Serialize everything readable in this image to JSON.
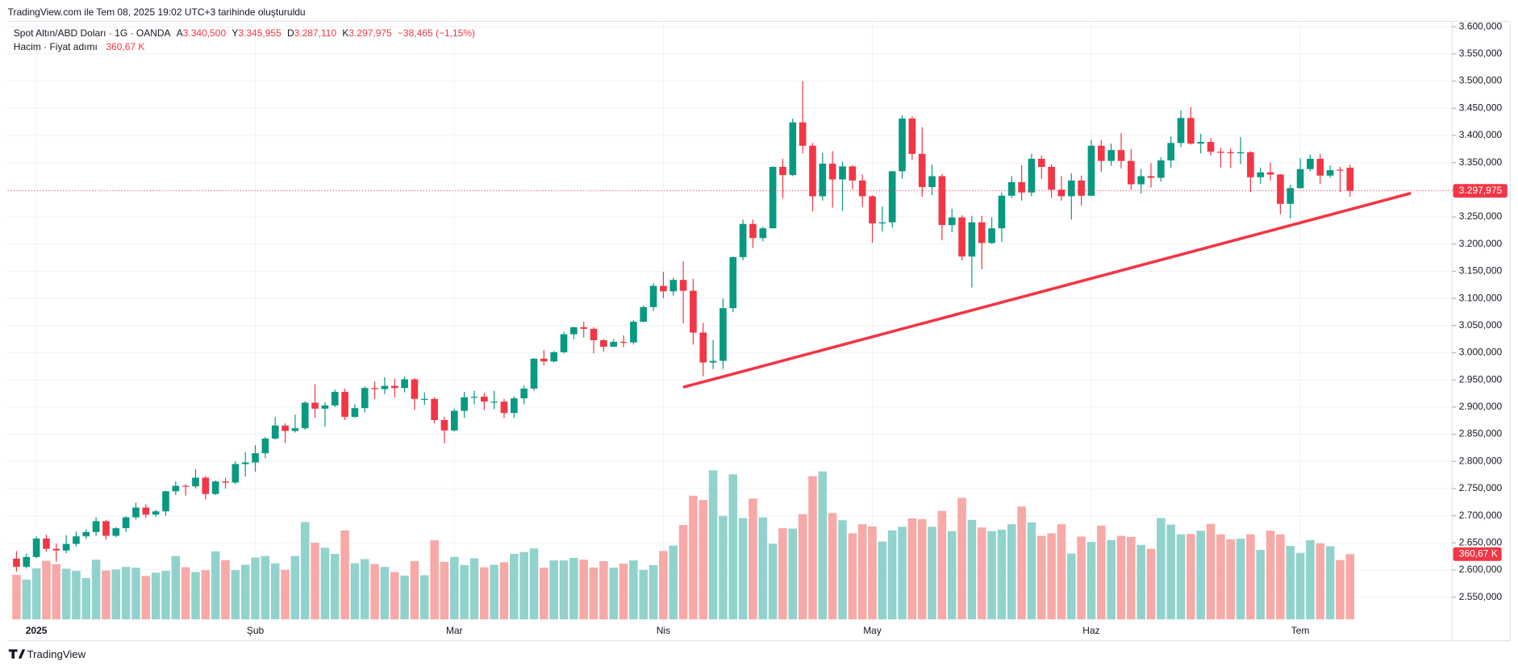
{
  "chart_data": {
    "type": "candlestick",
    "header": "TradingView.com ile Tem 08, 2025 19:02 UTC+3 tarihinde oluşturuldu",
    "title": "Spot Altın/ABD Doları · 1G · OANDA",
    "ohlc_legend": [
      {
        "label": "A",
        "value": "3.340,500"
      },
      {
        "label": "Y",
        "value": "3.345,955"
      },
      {
        "label": "D",
        "value": "3.287,110"
      },
      {
        "label": "K",
        "value": "3.297,975"
      }
    ],
    "change_label": "−38,465 (−1,15%)",
    "volume_title": "Hacim · Fiyat adımı",
    "volume_legend_value": "360,67 K",
    "last_price_label": "3.297,975",
    "last_volume_label": "360,67 K",
    "footer": "TradingView",
    "up_color": "#089981",
    "down_color": "#f23645",
    "up_volume_color": "#92d2cc",
    "down_volume_color": "#f7a9a7",
    "trend_line_color": "#f23645",
    "grid": true,
    "categories": [
      null,
      null,
      "2025",
      null,
      null,
      null,
      null,
      null,
      null,
      null,
      null,
      null,
      null,
      null,
      null,
      null,
      null,
      null,
      null,
      null,
      null,
      null,
      null,
      null,
      "Şub",
      null,
      null,
      null,
      null,
      null,
      null,
      null,
      null,
      null,
      null,
      null,
      null,
      null,
      null,
      null,
      null,
      null,
      null,
      null,
      "Mar",
      null,
      null,
      null,
      null,
      null,
      null,
      null,
      null,
      null,
      null,
      null,
      null,
      null,
      null,
      null,
      null,
      null,
      null,
      null,
      null,
      "Nis",
      null,
      null,
      null,
      null,
      null,
      null,
      null,
      null,
      null,
      null,
      null,
      null,
      null,
      null,
      null,
      null,
      null,
      null,
      null,
      null,
      "May",
      null,
      null,
      null,
      null,
      null,
      null,
      null,
      null,
      null,
      null,
      null,
      null,
      null,
      null,
      null,
      null,
      null,
      null,
      null,
      null,
      null,
      "Haz",
      null,
      null,
      null,
      null,
      null,
      null,
      null,
      null,
      null,
      null,
      null,
      null,
      null,
      null,
      null,
      null,
      null,
      null,
      null,
      null,
      "Tem",
      null,
      null,
      null,
      null,
      null
    ],
    "open": [
      2621,
      2606,
      2624,
      2658,
      2639,
      2636,
      2648,
      2662,
      2670,
      2690,
      2663,
      2677,
      2697,
      2715,
      2702,
      2708,
      2745,
      2755,
      2754,
      2770,
      2740,
      2763,
      2761,
      2795,
      2798,
      2815,
      2842,
      2866,
      2856,
      2861,
      2908,
      2897,
      2903,
      2928,
      2882,
      2898,
      2935,
      2933,
      2939,
      2935,
      2951,
      2915,
      2915,
      2876,
      2857,
      2893,
      2918,
      2919,
      2910,
      2910,
      2889,
      2916,
      2934,
      2989,
      2984,
      3001,
      3034,
      3047,
      3044,
      3023,
      3011,
      3020,
      3019,
      3057,
      3084,
      3123,
      3113,
      3134,
      3114,
      3037,
      2982,
      2985,
      3082,
      3176,
      3237,
      3211,
      3229,
      3342,
      3327,
      3424,
      3381,
      3288,
      3348,
      3319,
      3343,
      3317,
      3288,
      3238,
      3240,
      3334,
      3431,
      3366,
      3305,
      3325,
      3235,
      3249,
      3177,
      3240,
      3202,
      3229,
      3289,
      3314,
      3295,
      3357,
      3342,
      3300,
      3288,
      3317,
      3289,
      3381,
      3353,
      3373,
      3353,
      3310,
      3325,
      3322,
      3354,
      3386,
      3432,
      3385,
      3388,
      3370,
      3369,
      3367,
      3369,
      3323,
      3332,
      3328,
      3274,
      3303,
      3338,
      3357,
      3326,
      3337,
      3340.5
    ],
    "high": [
      2635,
      2630,
      2662,
      2665,
      2649,
      2664,
      2671,
      2675,
      2697,
      2692,
      2679,
      2699,
      2724,
      2721,
      2711,
      2746,
      2763,
      2758,
      2786,
      2773,
      2765,
      2770,
      2800,
      2817,
      2830,
      2845,
      2882,
      2870,
      2886,
      2911,
      2942,
      2909,
      2932,
      2934,
      2905,
      2938,
      2947,
      2955,
      2952,
      2956,
      2953,
      2927,
      2918,
      2882,
      2897,
      2928,
      2930,
      2926,
      2930,
      2915,
      2920,
      2940,
      2990,
      3005,
      3003,
      3038,
      3047,
      3057,
      3047,
      3025,
      3025,
      3032,
      3060,
      3087,
      3128,
      3149,
      3138,
      3168,
      3136,
      3055,
      3023,
      3100,
      3177,
      3245,
      3245,
      3232,
      3343,
      3357,
      3431,
      3500,
      3386,
      3368,
      3371,
      3352,
      3345,
      3328,
      3290,
      3269,
      3334,
      3437,
      3435,
      3415,
      3346,
      3329,
      3265,
      3253,
      3252,
      3252,
      3249,
      3295,
      3325,
      3345,
      3366,
      3363,
      3347,
      3325,
      3330,
      3326,
      3392,
      3392,
      3385,
      3404,
      3375,
      3338,
      3349,
      3360,
      3398,
      3446,
      3452,
      3403,
      3395,
      3377,
      3376,
      3397,
      3371,
      3341,
      3350,
      3329,
      3309,
      3358,
      3365,
      3366,
      3345,
      3342,
      3345.955
    ],
    "low": [
      2597,
      2603,
      2622,
      2634,
      2615,
      2631,
      2643,
      2657,
      2663,
      2656,
      2660,
      2670,
      2693,
      2696,
      2698,
      2700,
      2738,
      2737,
      2750,
      2730,
      2738,
      2750,
      2758,
      2772,
      2781,
      2806,
      2840,
      2834,
      2853,
      2858,
      2880,
      2864,
      2900,
      2876,
      2880,
      2890,
      2915,
      2924,
      2918,
      2927,
      2894,
      2904,
      2870,
      2833,
      2855,
      2880,
      2905,
      2894,
      2896,
      2880,
      2880,
      2905,
      2930,
      2977,
      2982,
      2999,
      3025,
      3028,
      2999,
      3002,
      3011,
      3010,
      3015,
      3056,
      3077,
      3100,
      3105,
      3054,
      3015,
      2957,
      2970,
      2970,
      3075,
      3170,
      3193,
      3205,
      3229,
      3284,
      3325,
      3367,
      3260,
      3280,
      3267,
      3261,
      3301,
      3268,
      3202,
      3223,
      3231,
      3320,
      3355,
      3287,
      3290,
      3207,
      3222,
      3170,
      3120,
      3154,
      3200,
      3204,
      3285,
      3280,
      3288,
      3320,
      3285,
      3280,
      3245,
      3271,
      3288,
      3333,
      3344,
      3339,
      3300,
      3293,
      3304,
      3315,
      3340,
      3378,
      3383,
      3367,
      3363,
      3341,
      3340,
      3347,
      3296,
      3311,
      3317,
      3255,
      3247,
      3302,
      3334,
      3311,
      3322,
      3296,
      3287.11
    ],
    "close": [
      2606,
      2624,
      2658,
      2639,
      2636,
      2648,
      2662,
      2670,
      2690,
      2663,
      2677,
      2697,
      2715,
      2702,
      2708,
      2745,
      2755,
      2754,
      2770,
      2740,
      2763,
      2761,
      2795,
      2798,
      2815,
      2842,
      2866,
      2856,
      2861,
      2908,
      2897,
      2903,
      2928,
      2882,
      2898,
      2935,
      2933,
      2939,
      2935,
      2951,
      2915,
      2915,
      2876,
      2857,
      2893,
      2918,
      2919,
      2910,
      2910,
      2889,
      2916,
      2934,
      2989,
      2984,
      3001,
      3034,
      3047,
      3044,
      3023,
      3011,
      3020,
      3019,
      3057,
      3084,
      3123,
      3113,
      3134,
      3114,
      3037,
      2982,
      2985,
      3082,
      3176,
      3237,
      3211,
      3229,
      3342,
      3327,
      3424,
      3381,
      3288,
      3348,
      3319,
      3343,
      3317,
      3288,
      3238,
      3240,
      3334,
      3431,
      3366,
      3305,
      3325,
      3235,
      3249,
      3177,
      3240,
      3202,
      3229,
      3289,
      3314,
      3295,
      3357,
      3342,
      3300,
      3288,
      3317,
      3289,
      3381,
      3353,
      3373,
      3353,
      3310,
      3325,
      3322,
      3354,
      3386,
      3432,
      3385,
      3388,
      3370,
      3368,
      3368,
      3369,
      3323,
      3332,
      3328,
      3274,
      3303,
      3338,
      3357,
      3326,
      3336,
      3336,
      3297.975
    ],
    "volume": {
      "name": "Hacim",
      "values": [
        246,
        220,
        282,
        324,
        305,
        280,
        268,
        228,
        330,
        270,
        276,
        290,
        286,
        240,
        258,
        268,
        350,
        288,
        262,
        272,
        376,
        327,
        272,
        302,
        342,
        350,
        310,
        274,
        350,
        538,
        424,
        396,
        362,
        492,
        310,
        333,
        306,
        290,
        262,
        242,
        322,
        244,
        438,
        318,
        345,
        300,
        338,
        288,
        302,
        316,
        362,
        372,
        392,
        286,
        326,
        326,
        340,
        330,
        287,
        322,
        286,
        308,
        326,
        274,
        300,
        378,
        408,
        522,
        684,
        660,
        824,
        572,
        802,
        560,
        668,
        564,
        418,
        504,
        502,
        582,
        792,
        818,
        588,
        548,
        476,
        526,
        514,
        430,
        492,
        512,
        558,
        554,
        512,
        600,
        488,
        672,
        550,
        508,
        488,
        496,
        526,
        624,
        536,
        462,
        476,
        526,
        364,
        458,
        428,
        518,
        438,
        462,
        456,
        412,
        390,
        560,
        524,
        470,
        472,
        490,
        528,
        470,
        442,
        446,
        470,
        384,
        490,
        470,
        406,
        368,
        438,
        420,
        404,
        328,
        360.67
      ]
    },
    "trend_line": {
      "x": [
        67.1,
        140
      ],
      "values": [
        2937,
        3293
      ]
    },
    "ylim": [
      2470,
      3610
    ],
    "yticks": [
      {
        "value": 2550,
        "label": "2.550,000"
      },
      {
        "value": 2600,
        "label": "2.600,000"
      },
      {
        "value": 2650,
        "label": "2.650,000"
      },
      {
        "value": 2700,
        "label": "2.700,000"
      },
      {
        "value": 2750,
        "label": "2.750,000"
      },
      {
        "value": 2800,
        "label": "2.800,000"
      },
      {
        "value": 2850,
        "label": "2.850,000"
      },
      {
        "value": 2900,
        "label": "2.900,000"
      },
      {
        "value": 2950,
        "label": "2.950,000"
      },
      {
        "value": 3000,
        "label": "3.000,000"
      },
      {
        "value": 3050,
        "label": "3.050,000"
      },
      {
        "value": 3100,
        "label": "3.100,000"
      },
      {
        "value": 3150,
        "label": "3.150,000"
      },
      {
        "value": 3200,
        "label": "3.200,000"
      },
      {
        "value": 3250,
        "label": "3.250,000"
      },
      {
        "value": 3300,
        "label": "3.300,000"
      },
      {
        "value": 3350,
        "label": "3.350,000"
      },
      {
        "value": 3400,
        "label": "3.400,000"
      },
      {
        "value": 3450,
        "label": "3.450,000"
      },
      {
        "value": 3500,
        "label": "3.500,000"
      },
      {
        "value": 3550,
        "label": "3.550,000"
      },
      {
        "value": 3600,
        "label": "3.600,000"
      }
    ]
  }
}
